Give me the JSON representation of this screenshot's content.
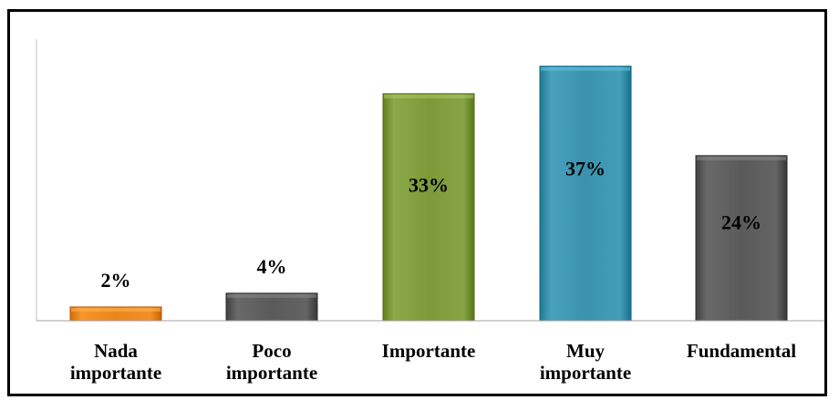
{
  "chart_data": {
    "type": "bar",
    "title": "",
    "xlabel": "",
    "ylabel": "",
    "categories": [
      "Nada\nimportante",
      "Poco\nimportante",
      "Importante",
      "Muy\nimportante",
      "Fundamental"
    ],
    "values": [
      2,
      4,
      33,
      37,
      24
    ],
    "value_labels": [
      "2%",
      "4%",
      "33%",
      "37%",
      "24%"
    ],
    "colors": [
      "#e8861e",
      "#5a5a5a",
      "#7c9a3a",
      "#3a93ae",
      "#5a5a5a"
    ],
    "ylim": [
      0,
      40
    ],
    "grid": false,
    "legend": "none"
  }
}
